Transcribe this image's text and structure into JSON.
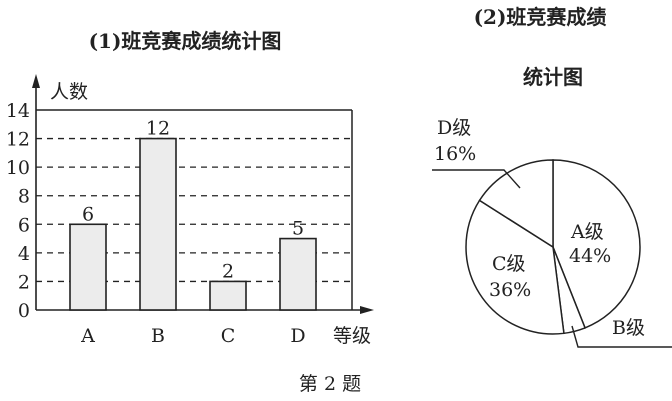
{
  "caption": "第 2 题",
  "chart_data": [
    {
      "type": "bar",
      "title": "(1)班竞赛成绩统计图",
      "xlabel": "等级",
      "ylabel": "人数",
      "categories": [
        "A",
        "B",
        "C",
        "D"
      ],
      "values": [
        6,
        12,
        2,
        5
      ],
      "ylim": [
        0,
        14
      ],
      "yticks": [
        0,
        2,
        4,
        6,
        8,
        10,
        12,
        14
      ],
      "grid": "dashed horizontal",
      "data_labels": true,
      "colors": {
        "bar": "#ececec",
        "stroke": "#222222"
      }
    },
    {
      "type": "pie",
      "title_line1": "(2)班竞赛成绩",
      "title_line2": "统计图",
      "slices": [
        {
          "label": "A级",
          "value": 44,
          "text": "44%"
        },
        {
          "label": "B级",
          "value": 4,
          "text": ""
        },
        {
          "label": "C级",
          "value": 36,
          "text": "36%"
        },
        {
          "label": "D级",
          "value": 16,
          "text": "16%"
        }
      ],
      "colors": {
        "fill": "#ffffff",
        "stroke": "#222222"
      }
    }
  ]
}
